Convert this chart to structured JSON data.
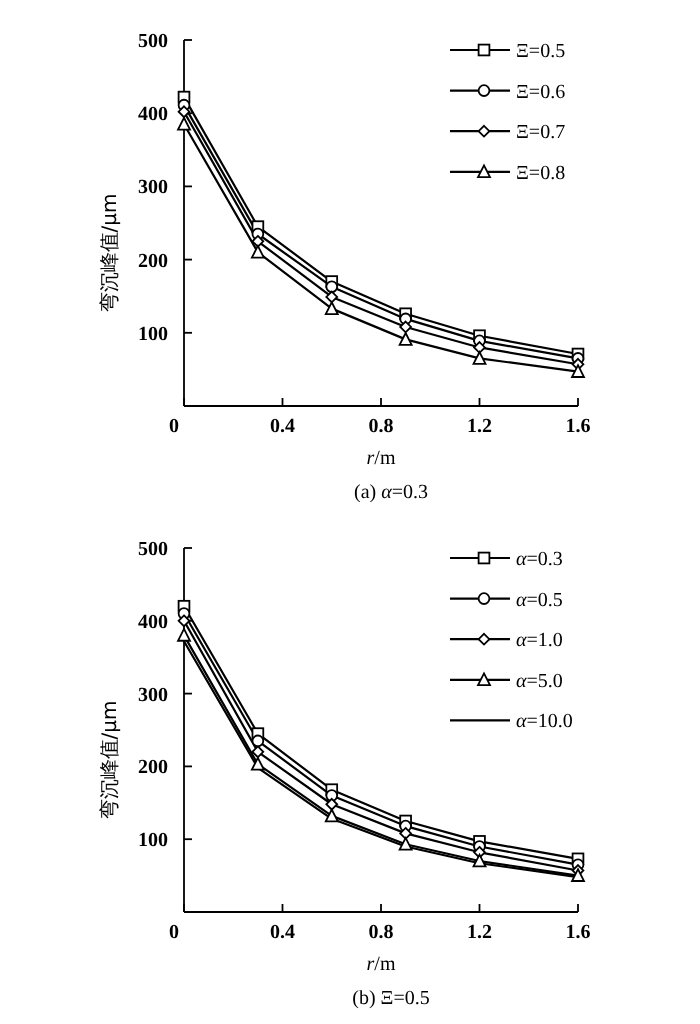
{
  "chart_data": [
    {
      "type": "line",
      "title": "(a) *α*=0.3",
      "xlabel": "*r*/m",
      "ylabel": "弯沉峰值/μm",
      "x": [
        0,
        0.3,
        0.6,
        0.9,
        1.2,
        1.6
      ],
      "xlim": [
        0,
        1.6
      ],
      "ylim": [
        0,
        500
      ],
      "xticks": [
        0,
        0.4,
        0.8,
        1.2,
        1.6
      ],
      "yticks": [
        100,
        200,
        300,
        400,
        500
      ],
      "legend": "top right",
      "grid": false,
      "series": [
        {
          "name": "Ξ=0.5",
          "color": "#000000",
          "marker": "square",
          "values": [
            422,
            245,
            170,
            126,
            96,
            71
          ]
        },
        {
          "name": "Ξ=0.6",
          "color": "#000000",
          "marker": "circle",
          "values": [
            411,
            235,
            163,
            119,
            89,
            65
          ]
        },
        {
          "name": "Ξ=0.7",
          "color": "#000000",
          "marker": "diamond",
          "values": [
            402,
            225,
            149,
            108,
            80,
            57
          ]
        },
        {
          "name": "Ξ=0.8",
          "color": "#000000",
          "marker": "triangle",
          "values": [
            385,
            210,
            133,
            91,
            65,
            47
          ]
        }
      ]
    },
    {
      "type": "line",
      "title": "(b) Ξ=0.5",
      "xlabel": "*r*/m",
      "ylabel": "弯沉峰值/μm",
      "x": [
        0,
        0.3,
        0.6,
        0.9,
        1.2,
        1.6
      ],
      "xlim": [
        0,
        1.6
      ],
      "ylim": [
        0,
        500
      ],
      "xticks": [
        0,
        0.4,
        0.8,
        1.2,
        1.6
      ],
      "yticks": [
        100,
        200,
        300,
        400,
        500
      ],
      "legend": "top right",
      "grid": false,
      "series": [
        {
          "name": "*α*=0.3",
          "color": "#000000",
          "marker": "square",
          "values": [
            420,
            245,
            168,
            125,
            97,
            73
          ]
        },
        {
          "name": "*α*=0.5",
          "color": "#000000",
          "marker": "circle",
          "values": [
            410,
            235,
            160,
            118,
            90,
            65
          ]
        },
        {
          "name": "*α*=1.0",
          "color": "#000000",
          "marker": "diamond",
          "values": [
            400,
            220,
            148,
            108,
            82,
            57
          ]
        },
        {
          "name": "*α*=5.0",
          "color": "#000000",
          "marker": "triangle",
          "values": [
            380,
            203,
            132,
            93,
            70,
            50
          ]
        },
        {
          "name": "*α*=10.0",
          "color": "#000000",
          "marker": "none",
          "values": [
            372,
            198,
            128,
            90,
            67,
            48
          ]
        }
      ]
    }
  ]
}
